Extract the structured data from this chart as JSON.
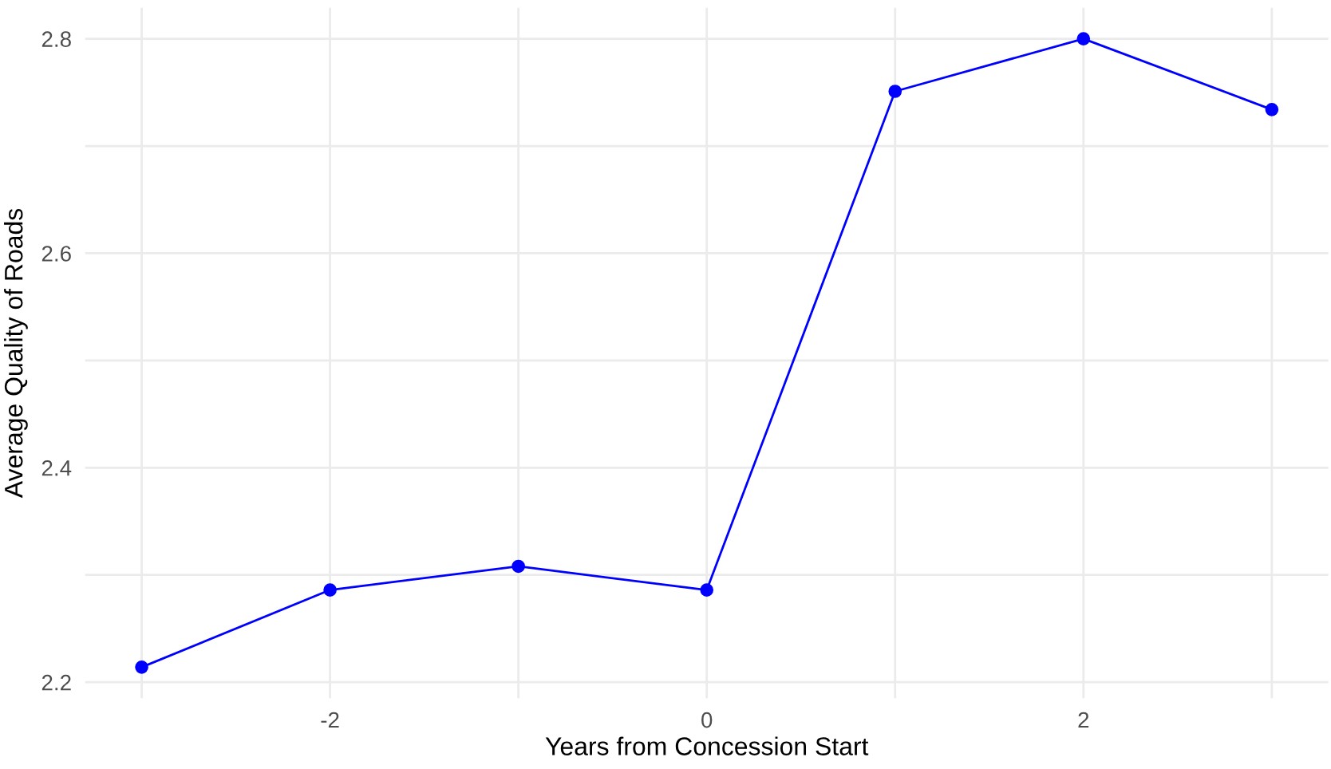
{
  "chart_data": {
    "type": "line",
    "xlabel": "Years from Concession Start",
    "ylabel": "Average Quality of Roads",
    "x": [
      -3,
      -2,
      -1,
      0,
      1,
      2,
      3
    ],
    "series": [
      {
        "color": "#0000ff",
        "values": [
          2.214,
          2.286,
          2.308,
          2.286,
          2.751,
          2.8,
          2.734
        ]
      }
    ],
    "marker": "circle",
    "line_style": "solid",
    "grid": true,
    "xlim": [
      -3.3,
      3.3
    ],
    "xticks": [
      {
        "value": -3,
        "label": null
      },
      -2,
      {
        "value": -1,
        "label": null
      },
      0,
      {
        "value": 1,
        "label": null
      },
      2,
      {
        "value": 3,
        "label": null
      }
    ],
    "ylim": [
      2.185,
      2.829
    ],
    "yticks": [
      2.2,
      {
        "value": 2.3,
        "label": null
      },
      2.4,
      {
        "value": 2.5,
        "label": null
      },
      2.6,
      {
        "value": 2.7,
        "label": null
      },
      2.8
    ]
  }
}
